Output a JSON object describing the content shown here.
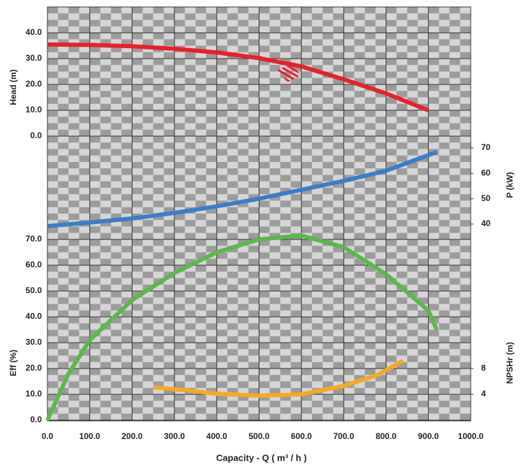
{
  "chart_data": {
    "type": "line",
    "x_label": "Capacity - Q ( m³ / h )",
    "xlim": [
      0,
      1000
    ],
    "xticks": [
      {
        "value": 0,
        "label": "0.0"
      },
      {
        "value": 100,
        "label": "100.0"
      },
      {
        "value": 200,
        "label": "200.0"
      },
      {
        "value": 300,
        "label": "300.0"
      },
      {
        "value": 400,
        "label": "400.0"
      },
      {
        "value": 500,
        "label": "500.0"
      },
      {
        "value": 600,
        "label": "600.0"
      },
      {
        "value": 700,
        "label": "700.0"
      },
      {
        "value": 800,
        "label": "800.0"
      },
      {
        "value": 900,
        "label": "900.0"
      },
      {
        "value": 1000,
        "label": "1000.0"
      }
    ],
    "ylabel": "Head (m)",
    "ylim": [
      0,
      40
    ],
    "yticks": [
      {
        "value": 0,
        "label": "0.0"
      },
      {
        "value": 10,
        "label": "10.0"
      },
      {
        "value": 20,
        "label": "20.0"
      },
      {
        "value": 30,
        "label": "30.0"
      },
      {
        "value": 40,
        "label": "40.0"
      }
    ],
    "y2label": "P (kW)",
    "y2lim": [
      40,
      70
    ],
    "y2ticks": [
      40,
      50,
      60,
      70
    ],
    "y3label": "Eff (%)",
    "y3lim": [
      0,
      70
    ],
    "y3ticks": [
      {
        "value": 0,
        "label": "0.0"
      },
      {
        "value": 10,
        "label": "10.0"
      },
      {
        "value": 20,
        "label": "20.0"
      },
      {
        "value": 30,
        "label": "30.0"
      },
      {
        "value": 40,
        "label": "40.0"
      },
      {
        "value": 50,
        "label": "50.0"
      },
      {
        "value": 60,
        "label": "60.0"
      },
      {
        "value": 70,
        "label": "70.0"
      }
    ],
    "y4label": "NPSHr (m)",
    "y4lim": [
      4,
      8
    ],
    "y4ticks": [
      4,
      8
    ],
    "grid": true,
    "series": [
      {
        "axis": "y",
        "color": "#e8202a",
        "x": [
          0,
          100,
          200,
          300,
          400,
          500,
          600,
          700,
          800,
          900
        ],
        "values": [
          35.5,
          35.3,
          34.8,
          33.8,
          32.4,
          30.2,
          27,
          22,
          16.5,
          10
        ]
      },
      {
        "axis": "y2",
        "color": "#3a7dc9",
        "x": [
          0,
          100,
          200,
          300,
          400,
          500,
          600,
          700,
          800,
          920
        ],
        "values": [
          39.2,
          40.6,
          42.2,
          44.4,
          47,
          50,
          53.5,
          57,
          61,
          68.4
        ]
      },
      {
        "axis": "y3",
        "color": "#5cb84a",
        "x": [
          0,
          50,
          100,
          200,
          300,
          400,
          500,
          600,
          700,
          800,
          900,
          920
        ],
        "values": [
          0,
          18,
          31,
          46.5,
          57,
          65,
          70,
          71.5,
          67,
          56.5,
          42.4,
          35
        ]
      },
      {
        "axis": "y4",
        "color": "#f7a823",
        "x": [
          250,
          300,
          400,
          500,
          600,
          700,
          780,
          840
        ],
        "values": [
          5.1,
          4.8,
          4.1,
          3.8,
          4,
          5.3,
          7,
          9.2
        ]
      }
    ]
  }
}
